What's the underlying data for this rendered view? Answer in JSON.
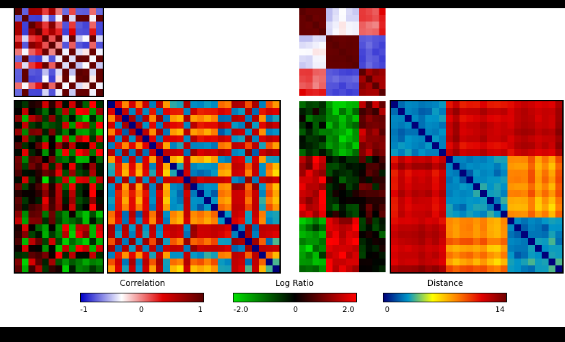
{
  "colors": {
    "correlation": [
      "#0000c8",
      "#ffffff",
      "#e00000",
      "#5a0000"
    ],
    "log_ratio": [
      "#00e000",
      "#000000",
      "#ff0000"
    ],
    "distance": [
      "#00007a",
      "#0096c8",
      "#ffff00",
      "#ff8000",
      "#e00000",
      "#700000"
    ]
  },
  "legends": {
    "correlation": {
      "title": "Correlation",
      "min": "-1",
      "mid": "0",
      "max": "1"
    },
    "log_ratio": {
      "title": "Log Ratio",
      "min": "-2.0",
      "mid": "0",
      "max": "2.0"
    },
    "distance": {
      "title": "Distance",
      "min": "0",
      "max": "14"
    }
  },
  "left_panel": {
    "ordering": "random"
  },
  "right_panel": {
    "ordering": "clustered"
  },
  "caption": ""
}
